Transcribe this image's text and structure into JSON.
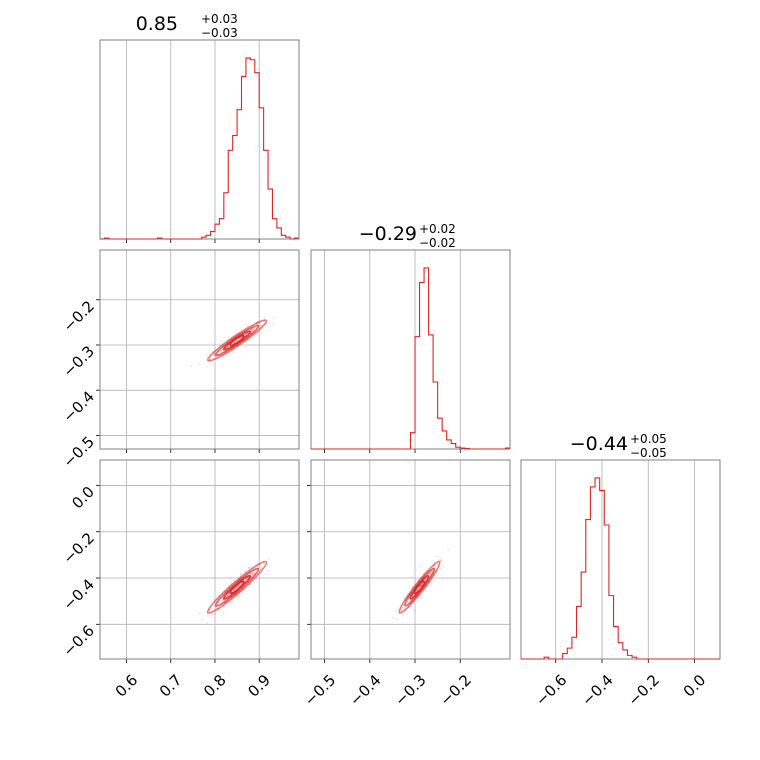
{
  "chart_data": {
    "type": "corner",
    "color": "#d62728",
    "titles": [
      {
        "median": "0.85",
        "plus": "+0.03",
        "minus": "−0.03"
      },
      {
        "median": "−0.29",
        "plus": "+0.02",
        "minus": "−0.02"
      },
      {
        "median": "−0.44",
        "plus": "+0.05",
        "minus": "−0.05"
      }
    ],
    "params": [
      {
        "range": [
          0.54,
          0.99
        ],
        "ticks": [
          0.6,
          0.7,
          0.8,
          0.9
        ],
        "tick_labels": [
          "0.6",
          "0.7",
          "0.8",
          "0.9"
        ]
      },
      {
        "range": [
          -0.53,
          -0.09
        ],
        "ticks": [
          -0.5,
          -0.4,
          -0.3,
          -0.2
        ],
        "tick_labels": [
          "−0.5",
          "−0.4",
          "−0.3",
          "−0.2"
        ]
      },
      {
        "range": [
          -0.75,
          0.11
        ],
        "ticks": [
          -0.6,
          -0.4,
          -0.2,
          0.0
        ],
        "tick_labels": [
          "−0.6",
          "−0.4",
          "−0.2",
          "0.0"
        ]
      }
    ],
    "histograms": [
      {
        "bins": [
          0.54,
          0.55,
          0.56,
          0.57,
          0.58,
          0.59,
          0.6,
          0.61,
          0.62,
          0.63,
          0.64,
          0.65,
          0.66,
          0.67,
          0.68,
          0.69,
          0.7,
          0.71,
          0.72,
          0.73,
          0.74,
          0.75,
          0.76,
          0.77,
          0.78,
          0.79,
          0.8,
          0.81,
          0.82,
          0.83,
          0.84,
          0.85,
          0.86,
          0.87,
          0.88,
          0.89,
          0.9,
          0.91,
          0.92,
          0.93,
          0.94,
          0.95,
          0.96,
          0.97,
          0.98,
          0.99
        ],
        "counts": [
          0,
          0.5,
          0,
          0,
          0,
          0,
          0,
          0,
          0,
          0,
          0,
          0,
          0,
          0.5,
          0,
          0,
          0,
          0,
          0,
          0,
          0,
          0,
          0,
          1,
          2,
          4,
          8,
          11,
          25,
          48,
          56,
          70,
          88,
          98,
          97,
          90,
          71,
          48,
          27,
          11,
          6,
          2,
          1,
          0,
          0.5
        ]
      },
      {
        "bins": [
          -0.53,
          -0.52,
          -0.51,
          -0.5,
          -0.49,
          -0.48,
          -0.47,
          -0.46,
          -0.45,
          -0.44,
          -0.43,
          -0.42,
          -0.41,
          -0.4,
          -0.39,
          -0.38,
          -0.37,
          -0.36,
          -0.35,
          -0.34,
          -0.33,
          -0.32,
          -0.31,
          -0.3,
          -0.29,
          -0.28,
          -0.27,
          -0.26,
          -0.25,
          -0.24,
          -0.23,
          -0.22,
          -0.21,
          -0.2,
          -0.19,
          -0.18,
          -0.17,
          -0.16,
          -0.15,
          -0.14,
          -0.13,
          -0.12,
          -0.11,
          -0.1,
          -0.09
        ],
        "counts": [
          0,
          0,
          0,
          0,
          0,
          0,
          0,
          0,
          0,
          0,
          0,
          0,
          0,
          0,
          0,
          0,
          0,
          0,
          0,
          0,
          0,
          0,
          9,
          62,
          92,
          100,
          63,
          37,
          17,
          10,
          5,
          3,
          1,
          0.5,
          0.3,
          0,
          0,
          0,
          0,
          0,
          0,
          0,
          0,
          0.5
        ]
      },
      {
        "bins": [
          -0.75,
          -0.73,
          -0.71,
          -0.69,
          -0.67,
          -0.65,
          -0.63,
          -0.61,
          -0.59,
          -0.57,
          -0.55,
          -0.53,
          -0.51,
          -0.49,
          -0.47,
          -0.45,
          -0.43,
          -0.41,
          -0.39,
          -0.37,
          -0.35,
          -0.33,
          -0.31,
          -0.29,
          -0.27,
          -0.25,
          -0.23,
          -0.21,
          -0.19,
          -0.17,
          -0.15,
          -0.13,
          -0.11,
          -0.09,
          -0.07,
          -0.05,
          -0.03,
          -0.01,
          0.01,
          0.03,
          0.05,
          0.07,
          0.09,
          0.11
        ],
        "counts": [
          0,
          0,
          0,
          0,
          0,
          1,
          0,
          0,
          0,
          3,
          6,
          12,
          29,
          48,
          77,
          95,
          100,
          93,
          74,
          35,
          18,
          9,
          5,
          2,
          1,
          0,
          0,
          0,
          0,
          0,
          0,
          0,
          0,
          0,
          0,
          0,
          0,
          0,
          0,
          0,
          0,
          0,
          0
        ]
      }
    ],
    "grid": true
  }
}
